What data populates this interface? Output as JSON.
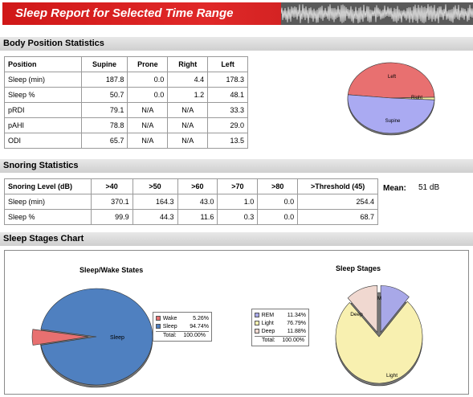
{
  "header": {
    "title": "Sleep Report for Selected Time Range"
  },
  "body_position": {
    "section_title": "Body Position Statistics",
    "columns": [
      "Position",
      "Supine",
      "Prone",
      "Right",
      "Left"
    ],
    "rows": [
      [
        "Sleep (min)",
        "187.8",
        "0.0",
        "4.4",
        "178.3"
      ],
      [
        "Sleep %",
        "50.7",
        "0.0",
        "1.2",
        "48.1"
      ],
      [
        "pRDI",
        "79.1",
        "N/A",
        "N/A",
        "33.3"
      ],
      [
        "pAHI",
        "78.8",
        "N/A",
        "N/A",
        "29.0"
      ],
      [
        "ODI",
        "65.7",
        "N/A",
        "N/A",
        "13.5"
      ]
    ]
  },
  "snoring": {
    "section_title": "Snoring Statistics",
    "columns": [
      "Snoring Level (dB)",
      ">40",
      ">50",
      ">60",
      ">70",
      ">80",
      ">Threshold (45)"
    ],
    "rows": [
      [
        "Sleep (min)",
        "370.1",
        "164.3",
        "43.0",
        "1.0",
        "0.0",
        "254.4"
      ],
      [
        "Sleep %",
        "99.9",
        "44.3",
        "11.6",
        "0.3",
        "0.0",
        "68.7"
      ]
    ],
    "mean_label": "Mean:",
    "mean_value": "51 dB"
  },
  "stages": {
    "section_title": "Sleep Stages Chart"
  },
  "chart_data": [
    {
      "type": "pie",
      "title": "",
      "slices": [
        {
          "label": "Left",
          "value": 48.1,
          "color": "#e87070"
        },
        {
          "label": "Right",
          "value": 1.2,
          "color": "#f2f0a0"
        },
        {
          "label": "Supine",
          "value": 50.7,
          "color": "#aaaaf2"
        }
      ]
    },
    {
      "type": "pie",
      "title": "Sleep/Wake States",
      "slices": [
        {
          "label": "Wake",
          "value": 5.26,
          "display": "5.26%",
          "color": "#e87070"
        },
        {
          "label": "Sleep",
          "value": 94.74,
          "display": "94.74%",
          "color": "#4f80c0"
        }
      ],
      "legend": {
        "total_label": "Total",
        "total_value": "100.00%"
      }
    },
    {
      "type": "pie",
      "title": "Sleep Stages",
      "slices": [
        {
          "label": "REM",
          "value": 11.34,
          "display": "11.34%",
          "color": "#a8a8e8"
        },
        {
          "label": "Light",
          "value": 76.79,
          "display": "76.79%",
          "color": "#f8f0b0"
        },
        {
          "label": "Deep",
          "value": 11.88,
          "display": "11.88%",
          "color": "#f0d8d0"
        }
      ],
      "legend": {
        "total_label": "Total",
        "total_value": "100.00%"
      }
    }
  ]
}
